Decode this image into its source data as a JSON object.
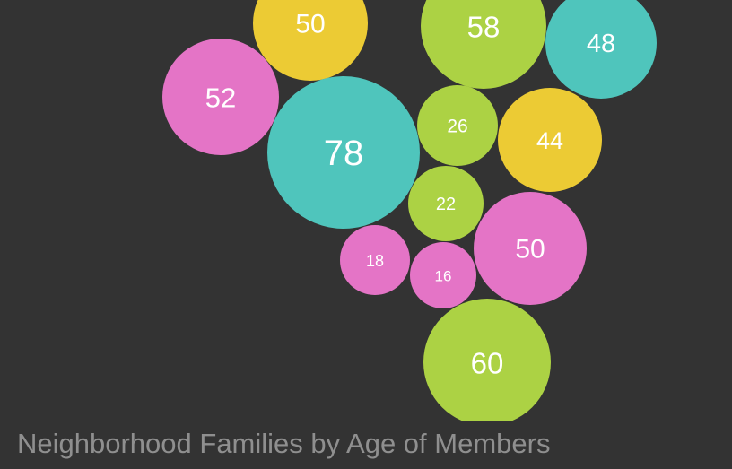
{
  "chart_data": {
    "type": "bubble",
    "title": "Neighborhood Families by Age of Members",
    "colors": {
      "pink": "#e474c6",
      "yellow": "#eccb34",
      "green": "#acd244",
      "teal": "#4fc5bc"
    },
    "bubbles": [
      {
        "value": 50,
        "color": "yellow"
      },
      {
        "value": 58,
        "color": "green"
      },
      {
        "value": 48,
        "color": "teal"
      },
      {
        "value": 52,
        "color": "pink"
      },
      {
        "value": 78,
        "color": "teal"
      },
      {
        "value": 26,
        "color": "green"
      },
      {
        "value": 44,
        "color": "yellow"
      },
      {
        "value": 22,
        "color": "green"
      },
      {
        "value": 50,
        "color": "pink"
      },
      {
        "value": 18,
        "color": "pink"
      },
      {
        "value": 16,
        "color": "pink"
      },
      {
        "value": 60,
        "color": "green"
      }
    ]
  }
}
